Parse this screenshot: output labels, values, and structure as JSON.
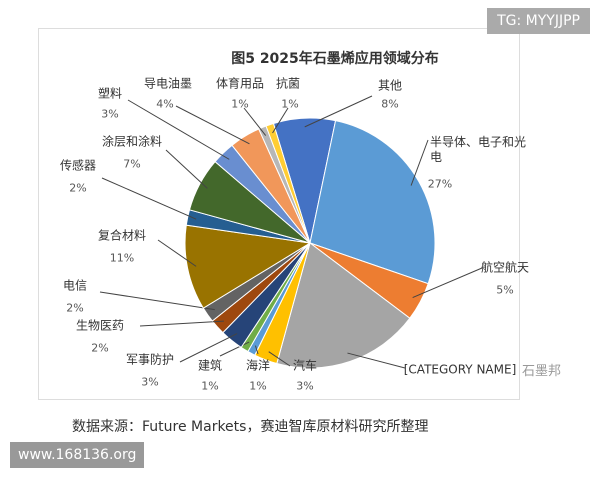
{
  "chart_data": {
    "type": "pie",
    "title": "图5  2025年石墨烯应用领域分布",
    "categories": [
      "其他",
      "半导体、电子和光电",
      "航空航天",
      "[CATEGORY NAME]",
      "汽车",
      "海洋",
      "建筑",
      "军事防护",
      "生物医药",
      "电信",
      "复合材料",
      "传感器",
      "涂层和涂料",
      "塑料",
      "导电油墨",
      "体育用品",
      "抗菌"
    ],
    "values": [
      8,
      27,
      5,
      19,
      3,
      1,
      1,
      3,
      2,
      2,
      11,
      2,
      7,
      3,
      4,
      1,
      1
    ],
    "value_labels": [
      "8%",
      "27%",
      "5%",
      null,
      "3%",
      "1%",
      "1%",
      "3%",
      "2%",
      "2%",
      "11%",
      "2%",
      "7%",
      "3%",
      "4%",
      "1%",
      "1%"
    ],
    "colors": [
      "#4472c4",
      "#5b9bd5",
      "#ed7d31",
      "#a5a5a5",
      "#ffc000",
      "#5b9bd5",
      "#70ad47",
      "#264478",
      "#9e480e",
      "#636363",
      "#997300",
      "#255e91",
      "#43682b",
      "#698ed0",
      "#f1975a",
      "#b7b7b7",
      "#ffcd33"
    ]
  },
  "badge": "TG: MYYJJPP",
  "source": "数据来源：Future Markets，赛迪智库原材料研究所整理",
  "watermark": "石墨邦",
  "site": "www.168136.org"
}
